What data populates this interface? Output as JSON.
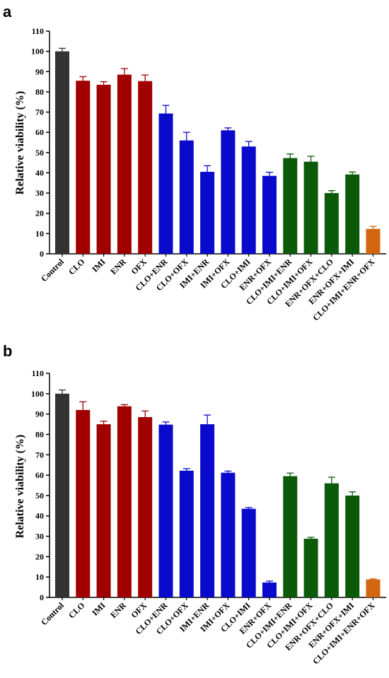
{
  "colors": {
    "control": "#333333",
    "single": "#A00000",
    "binary": "#0A0ACC",
    "ternary": "#0A5A0A",
    "quaternary": "#D2660F"
  },
  "chart_data": [
    {
      "panel_label": "a",
      "type": "bar",
      "ylabel": "Relative viability (%)",
      "ylim": [
        0,
        110
      ],
      "yticks": [
        0,
        10,
        20,
        30,
        40,
        50,
        60,
        70,
        80,
        90,
        100,
        110
      ],
      "grid": false,
      "categories": [
        "Control",
        "CLO",
        "IMI",
        "ENR",
        "OFX",
        "CLO+ENR",
        "CLO+OFX",
        "IMI+ENR",
        "IMI+OFX",
        "CLO+IMI",
        "ENR+OFX",
        "CLO+IMI+ENR",
        "CLO+IMI+OFX",
        "ENR+OFX+CLO",
        "ENR+OFX+IMI",
        "CLO+IMI+ENR+OFX"
      ],
      "values": [
        100,
        85.5,
        83.5,
        88.5,
        85.3,
        69.3,
        56,
        40.5,
        61,
        53,
        38.5,
        47.3,
        45.5,
        30,
        39.2,
        12.3
      ],
      "errors": [
        1.5,
        2,
        1.5,
        3,
        3,
        4,
        4,
        3,
        1.2,
        2.5,
        1.8,
        2,
        2.7,
        1.2,
        1.2,
        1.2
      ],
      "groups": [
        "control",
        "single",
        "single",
        "single",
        "single",
        "binary",
        "binary",
        "binary",
        "binary",
        "binary",
        "binary",
        "ternary",
        "ternary",
        "ternary",
        "ternary",
        "quaternary"
      ]
    },
    {
      "panel_label": "b",
      "type": "bar",
      "ylabel": "Relative viability (%)",
      "ylim": [
        0,
        110
      ],
      "yticks": [
        0,
        10,
        20,
        30,
        40,
        50,
        60,
        70,
        80,
        90,
        100,
        110
      ],
      "grid": false,
      "categories": [
        "Control",
        "CLO",
        "IMI",
        "ENR",
        "OFX",
        "CLO+ENR",
        "CLO+OFX",
        "IMI+ENR",
        "IMI+OFX",
        "CLO+IMI",
        "ENR+OFX",
        "CLO+IMI+ENR",
        "CLO+IMI+OFX",
        "ENR+OFX+CLO",
        "ENR+OFX+IMI",
        "CLO+IMI+ENR+OFX"
      ],
      "values": [
        100,
        92,
        85,
        93.8,
        88.5,
        84.8,
        62.2,
        85,
        61.2,
        43.5,
        7.3,
        59.5,
        28.8,
        56,
        50,
        8.8
      ],
      "errors": [
        1.8,
        4,
        1.5,
        0.8,
        3,
        1.3,
        1,
        4.5,
        0.8,
        0.6,
        0.7,
        1.5,
        0.7,
        3,
        1.8,
        0.3
      ],
      "groups": [
        "control",
        "single",
        "single",
        "single",
        "single",
        "binary",
        "binary",
        "binary",
        "binary",
        "binary",
        "binary",
        "ternary",
        "ternary",
        "ternary",
        "ternary",
        "quaternary"
      ]
    }
  ]
}
